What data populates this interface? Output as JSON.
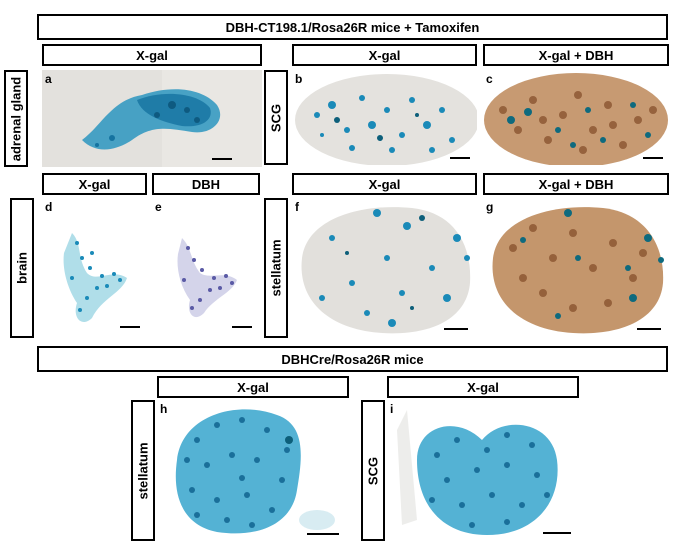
{
  "top_title": "DBH-CT198.1/Rosa26R  mice   + Tamoxifen",
  "bottom_title": "DBHCre/Rosa26R  mice",
  "headers": {
    "a": "X-gal",
    "b": "X-gal",
    "c": "X-gal + DBH",
    "d": "X-gal",
    "e": "DBH",
    "f": "X-gal",
    "g": "X-gal + DBH",
    "h": "X-gal",
    "i": "X-gal"
  },
  "row_labels": {
    "adrenal": "adrenal gland",
    "scg": "SCG",
    "brain": "brain",
    "stellatum": "stellatum",
    "stellatum2": "stellatum",
    "scg2": "SCG"
  },
  "panel_letters": {
    "a": "a",
    "b": "b",
    "c": "c",
    "d": "d",
    "e": "e",
    "f": "f",
    "g": "g",
    "h": "h",
    "i": "i"
  },
  "colors": {
    "xgal_blue": "#1a8ab8",
    "xgal_dark": "#0d5f7a",
    "dbh_brown": "#b07a4e",
    "dbh_purple": "#6a6ab0",
    "tissue_gray": "#e8e6e2"
  }
}
